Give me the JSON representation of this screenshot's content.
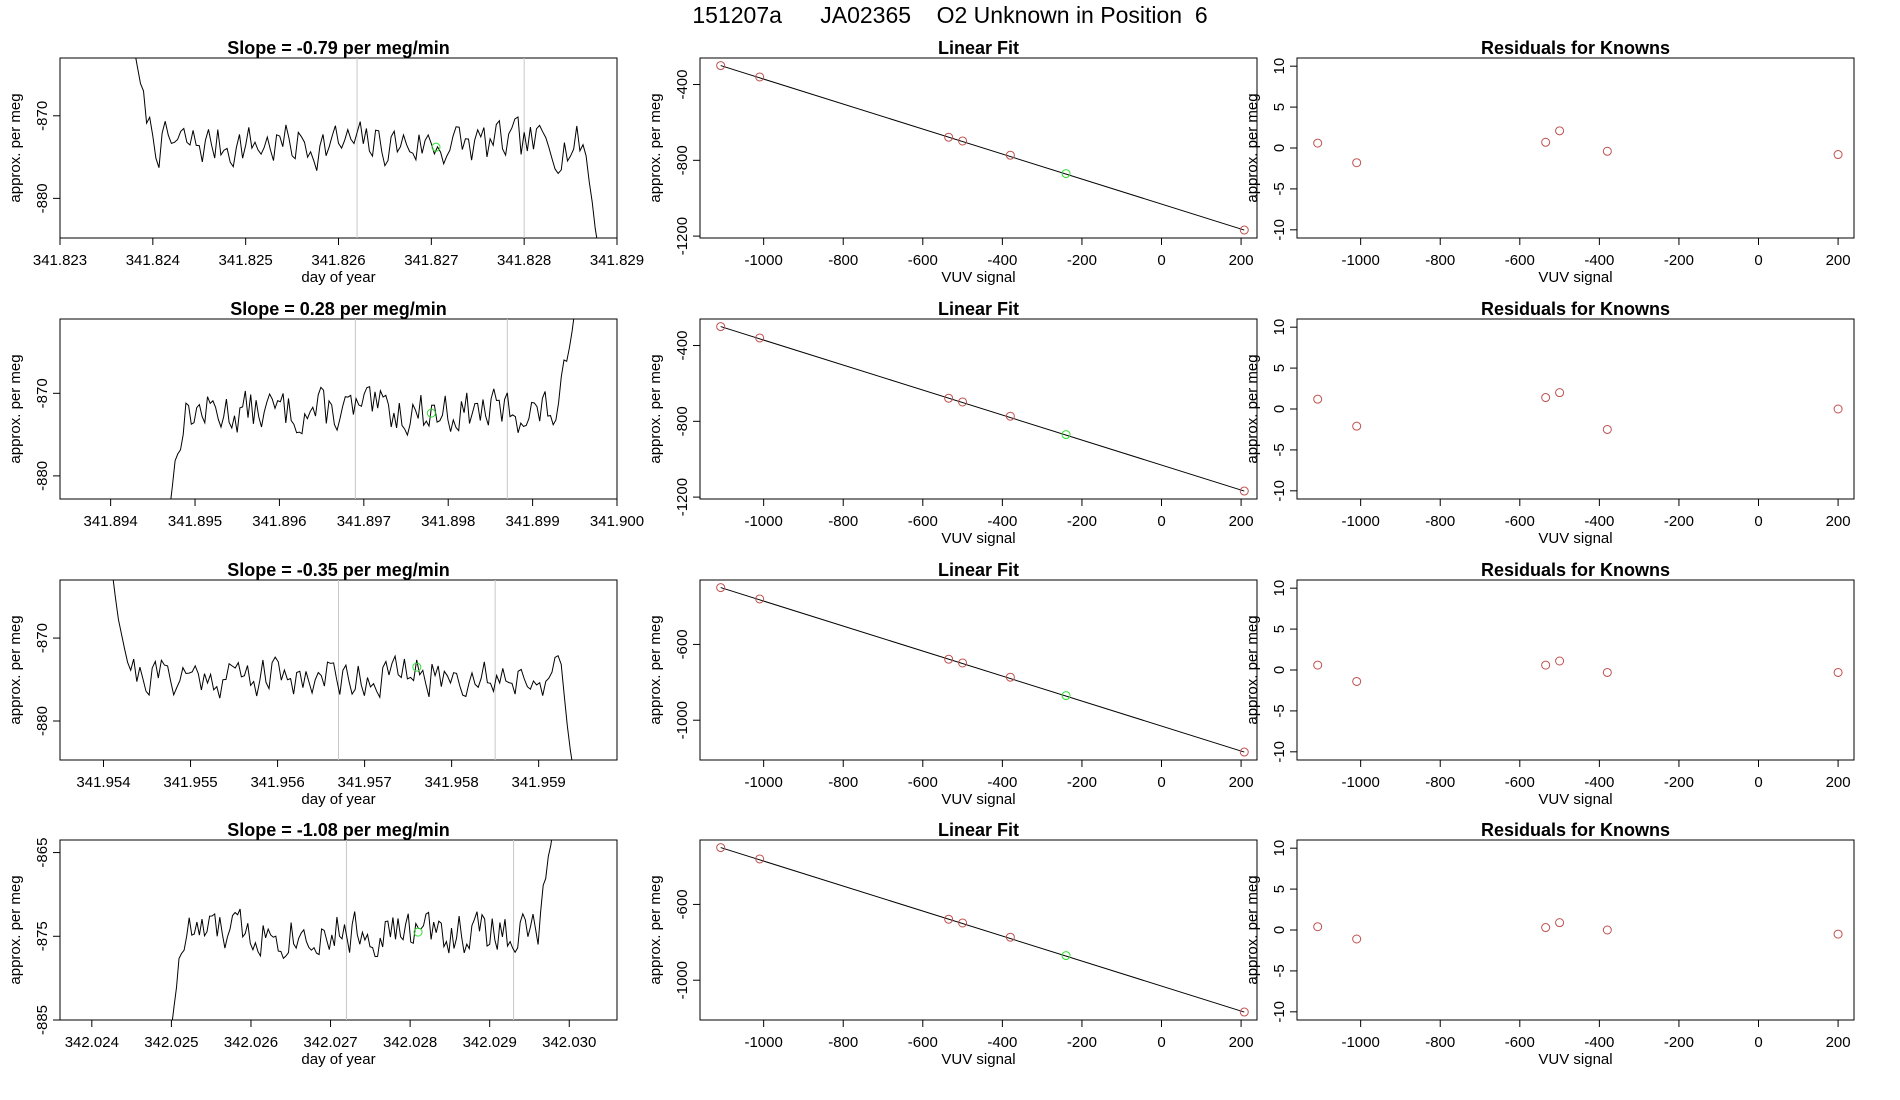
{
  "page_title": "151207a      JA02365    O2 Unknown in Position  6",
  "colors": {
    "line": "#000000",
    "vline": "#c8c8c8",
    "known_point": "#c0504d",
    "unknown_point": "#33dd33"
  },
  "chart_data": [
    {
      "type": "line",
      "row": 0,
      "col": 0,
      "title": "Slope =  -0.79  per meg/min",
      "xlabel": "day of year",
      "ylabel": "approx. per meg",
      "xlim": [
        341.823,
        341.829
      ],
      "ylim": [
        -884.8,
        -863.0
      ],
      "xticks": [
        "341.823",
        "341.824",
        "341.825",
        "341.826",
        "341.827",
        "341.828",
        "341.829"
      ],
      "yticks": [
        -880,
        -870
      ],
      "vlines": [
        341.8262,
        341.828
      ],
      "segment": {
        "x_start": 341.8238,
        "x_end": 341.8288,
        "ymax_start": -862,
        "end_drop": -886,
        "base": -873.5,
        "amp": 2.4,
        "seed": 7
      },
      "marker": {
        "x": 341.82705,
        "y": -873.8
      }
    },
    {
      "type": "line",
      "row": 1,
      "col": 0,
      "title": "Slope =  0.28  per meg/min",
      "xlabel": "",
      "ylabel": "approx. per meg",
      "xlim": [
        341.8934,
        341.9
      ],
      "ylim": [
        -882.8,
        -861.0
      ],
      "xticks": [
        "341.894",
        "341.895",
        "341.896",
        "341.897",
        "341.898",
        "341.899",
        "341.900"
      ],
      "yticks": [
        -880,
        -870
      ],
      "vlines": [
        341.8969,
        341.8987
      ],
      "segment": {
        "x_start": 341.8947,
        "x_end": 341.8995,
        "start_drop": -884,
        "end_rise": -860,
        "base": -872.2,
        "amp": 2.3,
        "seed": 13
      },
      "marker": {
        "x": 341.8978,
        "y": -872.4
      }
    },
    {
      "type": "line",
      "row": 2,
      "col": 0,
      "title": "Slope =  -0.35  per meg/min",
      "xlabel": "day of year",
      "ylabel": "approx. per meg",
      "xlim": [
        341.9535,
        341.9599
      ],
      "ylim": [
        -884.7,
        -863.0
      ],
      "xticks": [
        "341.954",
        "341.955",
        "341.956",
        "341.957",
        "341.958",
        "341.959"
      ],
      "yticks": [
        -880,
        -870
      ],
      "vlines": [
        341.9567,
        341.9585
      ],
      "segment": {
        "x_start": 341.9541,
        "x_end": 341.9594,
        "ymax_start": -862,
        "end_drop": -886,
        "base": -874.5,
        "amp": 2.2,
        "seed": 21
      },
      "marker": {
        "x": 341.9576,
        "y": -873.5
      }
    },
    {
      "type": "line",
      "row": 3,
      "col": 0,
      "title": "Slope =  -1.08  per meg/min",
      "xlabel": "day of year",
      "ylabel": "approx. per meg",
      "xlim": [
        342.0236,
        342.0306
      ],
      "ylim": [
        -885.0,
        -863.5
      ],
      "xticks": [
        "342.024",
        "342.025",
        "342.026",
        "342.027",
        "342.028",
        "342.029",
        "342.030"
      ],
      "yticks": [
        -885,
        -875,
        -865
      ],
      "vlines": [
        342.0272,
        342.0293
      ],
      "segment": {
        "x_start": 342.025,
        "x_end": 342.0298,
        "start_drop": -886,
        "end_rise": -862,
        "base": -874.5,
        "amp": 2.3,
        "seed": 33
      },
      "marker": {
        "x": 342.0281,
        "y": -874.5
      }
    },
    {
      "type": "scatter",
      "row": 0,
      "col": 1,
      "title": "Linear Fit",
      "xlabel": "VUV signal",
      "ylabel": "approx. per meg",
      "xlim": [
        -1160,
        240
      ],
      "ylim": [
        -1210,
        -260
      ],
      "xticks": [
        -1000,
        -800,
        -600,
        -400,
        -200,
        0,
        200
      ],
      "yticks": [
        -1200,
        -800,
        -400
      ],
      "fit_line": [
        [
          -1108,
          -300
        ],
        [
          208,
          -1168
        ]
      ],
      "known": [
        [
          -1108,
          -300
        ],
        [
          -1010,
          -360
        ],
        [
          -535,
          -678
        ],
        [
          -500,
          -698
        ],
        [
          -380,
          -773
        ]
      ],
      "known_end": [
        [
          208,
          -1168
        ]
      ],
      "unknown": [
        [
          -240,
          -870
        ]
      ]
    },
    {
      "type": "scatter",
      "row": 1,
      "col": 1,
      "title": "Linear Fit",
      "xlabel": "VUV signal",
      "ylabel": "approx. per meg",
      "xlim": [
        -1160,
        240
      ],
      "ylim": [
        -1210,
        -260
      ],
      "xticks": [
        -1000,
        -800,
        -600,
        -400,
        -200,
        0,
        200
      ],
      "yticks": [
        -1200,
        -800,
        -400
      ],
      "fit_line": [
        [
          -1108,
          -300
        ],
        [
          208,
          -1168
        ]
      ],
      "known": [
        [
          -1108,
          -300
        ],
        [
          -1010,
          -360
        ],
        [
          -535,
          -678
        ],
        [
          -500,
          -698
        ],
        [
          -380,
          -773
        ]
      ],
      "known_end": [
        [
          208,
          -1168
        ]
      ],
      "unknown": [
        [
          -240,
          -870
        ]
      ]
    },
    {
      "type": "scatter",
      "row": 2,
      "col": 1,
      "title": "Linear Fit",
      "xlabel": "VUV signal",
      "ylabel": "approx. per meg",
      "xlim": [
        -1160,
        240
      ],
      "ylim": [
        -1210,
        -260
      ],
      "xticks": [
        -1000,
        -800,
        -600,
        -400,
        -200,
        0,
        200
      ],
      "yticks": [
        -1000,
        -600
      ],
      "fit_line": [
        [
          -1108,
          -300
        ],
        [
          208,
          -1168
        ]
      ],
      "known": [
        [
          -1108,
          -300
        ],
        [
          -1010,
          -360
        ],
        [
          -535,
          -678
        ],
        [
          -500,
          -698
        ],
        [
          -380,
          -773
        ]
      ],
      "known_end": [
        [
          208,
          -1168
        ]
      ],
      "unknown": [
        [
          -240,
          -870
        ]
      ]
    },
    {
      "type": "scatter",
      "row": 3,
      "col": 1,
      "title": "Linear Fit",
      "xlabel": "VUV signal",
      "ylabel": "approx. per meg",
      "xlim": [
        -1160,
        240
      ],
      "ylim": [
        -1210,
        -260
      ],
      "xticks": [
        -1000,
        -800,
        -600,
        -400,
        -200,
        0,
        200
      ],
      "yticks": [
        -1000,
        -600
      ],
      "fit_line": [
        [
          -1108,
          -300
        ],
        [
          208,
          -1168
        ]
      ],
      "known": [
        [
          -1108,
          -300
        ],
        [
          -1010,
          -360
        ],
        [
          -535,
          -678
        ],
        [
          -500,
          -698
        ],
        [
          -380,
          -773
        ]
      ],
      "known_end": [
        [
          208,
          -1168
        ]
      ],
      "unknown": [
        [
          -240,
          -870
        ]
      ]
    },
    {
      "type": "scatter",
      "row": 0,
      "col": 2,
      "title": "Residuals for Knowns",
      "xlabel": "VUV signal",
      "ylabel": "approx. per meg",
      "xlim": [
        -1160,
        240
      ],
      "ylim": [
        -11,
        11
      ],
      "xticks": [
        -1000,
        -800,
        -600,
        -400,
        -200,
        0,
        200
      ],
      "yticks": [
        -10,
        -5,
        0,
        5,
        10
      ],
      "known": [
        [
          -1108,
          0.6
        ],
        [
          -1010,
          -1.8
        ],
        [
          -535,
          0.7
        ],
        [
          -500,
          2.1
        ],
        [
          -380,
          -0.4
        ],
        [
          200,
          -0.8
        ]
      ]
    },
    {
      "type": "scatter",
      "row": 1,
      "col": 2,
      "title": "Residuals for Knowns",
      "xlabel": "VUV signal",
      "ylabel": "approx. per meg",
      "xlim": [
        -1160,
        240
      ],
      "ylim": [
        -11,
        11
      ],
      "xticks": [
        -1000,
        -800,
        -600,
        -400,
        -200,
        0,
        200
      ],
      "yticks": [
        -10,
        -5,
        0,
        5,
        10
      ],
      "known": [
        [
          -1108,
          1.2
        ],
        [
          -1010,
          -2.1
        ],
        [
          -535,
          1.4
        ],
        [
          -500,
          2.0
        ],
        [
          -380,
          -2.5
        ],
        [
          200,
          0.0
        ]
      ]
    },
    {
      "type": "scatter",
      "row": 2,
      "col": 2,
      "title": "Residuals for Knowns",
      "xlabel": "VUV signal",
      "ylabel": "approx. per meg",
      "xlim": [
        -1160,
        240
      ],
      "ylim": [
        -11,
        11
      ],
      "xticks": [
        -1000,
        -800,
        -600,
        -400,
        -200,
        0,
        200
      ],
      "yticks": [
        -10,
        -5,
        0,
        5,
        10
      ],
      "known": [
        [
          -1108,
          0.6
        ],
        [
          -1010,
          -1.4
        ],
        [
          -535,
          0.6
        ],
        [
          -500,
          1.1
        ],
        [
          -380,
          -0.3
        ],
        [
          200,
          -0.3
        ]
      ]
    },
    {
      "type": "scatter",
      "row": 3,
      "col": 2,
      "title": "Residuals for Knowns",
      "xlabel": "VUV signal",
      "ylabel": "approx. per meg",
      "xlim": [
        -1160,
        240
      ],
      "ylim": [
        -11,
        11
      ],
      "xticks": [
        -1000,
        -800,
        -600,
        -400,
        -200,
        0,
        200
      ],
      "yticks": [
        -10,
        -5,
        0,
        5,
        10
      ],
      "known": [
        [
          -1108,
          0.4
        ],
        [
          -1010,
          -1.1
        ],
        [
          -535,
          0.3
        ],
        [
          -500,
          0.9
        ],
        [
          -380,
          0.0
        ],
        [
          200,
          -0.5
        ]
      ]
    }
  ]
}
